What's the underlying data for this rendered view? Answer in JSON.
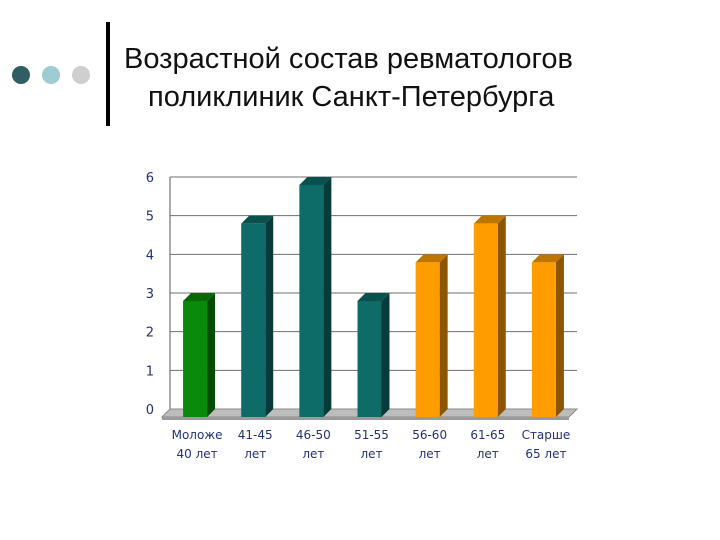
{
  "header": {
    "title_line1": "Возрастной состав ревматологов",
    "title_line2": "поликлиник Санкт-Петербурга"
  },
  "decor": {
    "dot_colors": [
      "#2f5f63",
      "#9fcbd2",
      "#cfcfcf"
    ]
  },
  "colors": {
    "green": "#0a8a0a",
    "teal": "#0d6b68",
    "orange": "#ff9d00"
  },
  "chart_data": {
    "type": "bar",
    "categories": [
      [
        "Моложе",
        "40 лет"
      ],
      [
        "41-45",
        "лет"
      ],
      [
        "46-50",
        "лет"
      ],
      [
        "51-55",
        "лет"
      ],
      [
        "56-60",
        "лет"
      ],
      [
        "61-65",
        "лет"
      ],
      [
        "Старше",
        "65 лет"
      ]
    ],
    "values": [
      3,
      5,
      6,
      3,
      4,
      5,
      4
    ],
    "bar_colors": [
      "green",
      "teal",
      "teal",
      "teal",
      "orange",
      "orange",
      "orange"
    ],
    "yticks": [
      "0",
      "1",
      "2",
      "3",
      "4",
      "5",
      "6"
    ],
    "ylim": [
      0,
      6
    ],
    "grid": true,
    "style": "3d"
  }
}
